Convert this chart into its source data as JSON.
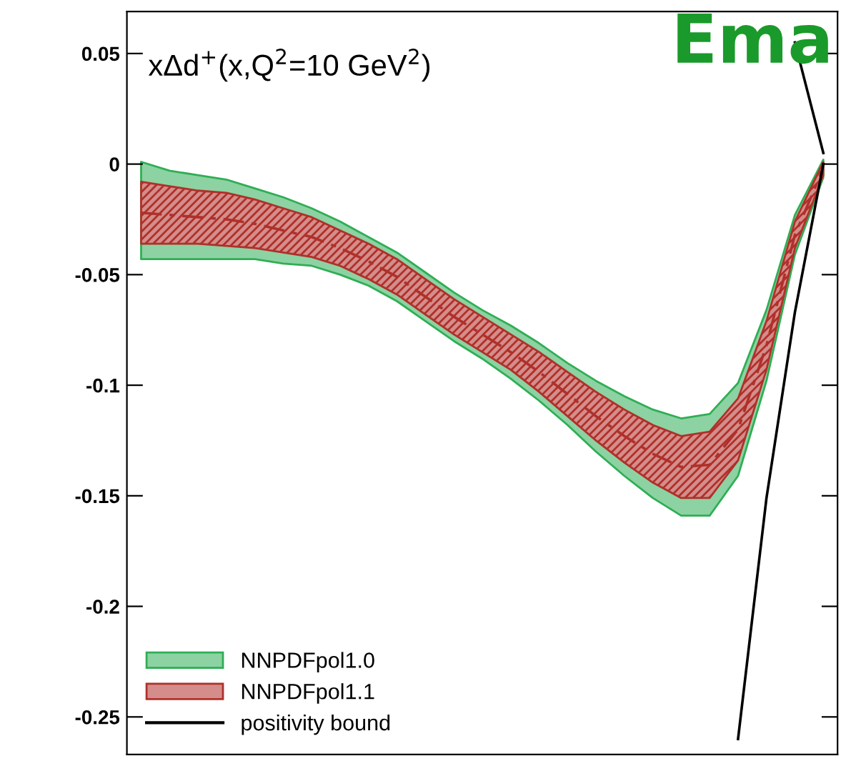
{
  "chart_data": {
    "type": "line",
    "title": "xΔd$^{+}$(x,Q$^{2}$=10 GeV$^{2}$)",
    "categories": [
      null,
      null,
      null,
      null,
      null,
      null,
      null,
      null,
      null,
      null,
      null,
      null,
      null,
      null,
      null,
      null,
      null,
      null,
      null,
      null,
      null,
      null,
      null,
      null,
      null
    ],
    "series": [
      {
        "name": "NNPDFpol1.0",
        "color": "#2fae55",
        "line_style": "dashed",
        "values": [
          null,
          null,
          null,
          null,
          null,
          null,
          null,
          null,
          null,
          null,
          null,
          null,
          null,
          null,
          null,
          null,
          null,
          null,
          null,
          null,
          null,
          null,
          null,
          null,
          null
        ],
        "lower": [
          -0.043,
          -0.043,
          -0.043,
          -0.043,
          -0.043,
          -0.045,
          -0.046,
          -0.05,
          -0.055,
          -0.062,
          -0.071,
          -0.08,
          -0.088,
          -0.097,
          -0.107,
          -0.118,
          -0.13,
          -0.141,
          -0.151,
          -0.159,
          -0.159,
          -0.141,
          -0.098,
          -0.041,
          -0.006
        ],
        "upper": [
          0.001,
          -0.003,
          -0.005,
          -0.007,
          -0.011,
          -0.015,
          -0.02,
          -0.026,
          -0.033,
          -0.04,
          -0.049,
          -0.058,
          -0.066,
          -0.073,
          -0.081,
          -0.09,
          -0.098,
          -0.105,
          -0.111,
          -0.115,
          -0.113,
          -0.099,
          -0.066,
          -0.023,
          0.002
        ]
      },
      {
        "name": "NNPDFpol1.1",
        "color": "#b0302a",
        "line_style": "dashed",
        "values": [
          -0.022,
          -0.023,
          -0.024,
          -0.025,
          -0.027,
          -0.03,
          -0.033,
          -0.038,
          -0.044,
          -0.051,
          -0.06,
          -0.069,
          -0.077,
          -0.085,
          -0.094,
          -0.104,
          -0.114,
          -0.123,
          -0.131,
          -0.137,
          -0.136,
          -0.12,
          -0.082,
          -0.032,
          -0.002
        ],
        "lower": [
          -0.036,
          -0.036,
          -0.036,
          -0.037,
          -0.038,
          -0.04,
          -0.042,
          -0.046,
          -0.052,
          -0.059,
          -0.068,
          -0.077,
          -0.085,
          -0.093,
          -0.103,
          -0.114,
          -0.125,
          -0.135,
          -0.144,
          -0.151,
          -0.151,
          -0.134,
          -0.093,
          -0.038,
          -0.005
        ],
        "upper": [
          -0.008,
          -0.01,
          -0.012,
          -0.013,
          -0.016,
          -0.02,
          -0.024,
          -0.03,
          -0.036,
          -0.043,
          -0.052,
          -0.061,
          -0.069,
          -0.077,
          -0.085,
          -0.094,
          -0.103,
          -0.111,
          -0.118,
          -0.123,
          -0.121,
          -0.106,
          -0.071,
          -0.026,
          0.001
        ]
      },
      {
        "name": "positivity bound",
        "color": "#000000",
        "line_style": "solid",
        "values": [
          null,
          null,
          null,
          null,
          null,
          null,
          null,
          null,
          null,
          null,
          null,
          null,
          null,
          null,
          null,
          null,
          null,
          null,
          null,
          null,
          null,
          -0.26,
          -0.151,
          -0.067,
          0.0
        ]
      },
      {
        "color": "#000000",
        "line_style": "solid",
        "values": [
          null,
          null,
          null,
          null,
          null,
          null,
          null,
          null,
          null,
          null,
          null,
          null,
          null,
          null,
          null,
          null,
          null,
          null,
          null,
          null,
          null,
          null,
          null,
          0.055,
          0.005
        ]
      }
    ],
    "ylim": [
      -0.267,
      0.069
    ],
    "yticks": [
      0.05,
      0,
      {
        "value": -0.05,
        "label": "-0.05"
      },
      {
        "value": -0.1,
        "label": "-0.1"
      },
      {
        "value": -0.15,
        "label": "-0.15"
      },
      {
        "value": -0.2,
        "label": "-0.2"
      },
      {
        "value": -0.25,
        "label": "-0.25"
      }
    ],
    "tick_labels": "y",
    "grid": false,
    "legend": "bottom left",
    "annotations": [
      "Ema"
    ]
  }
}
